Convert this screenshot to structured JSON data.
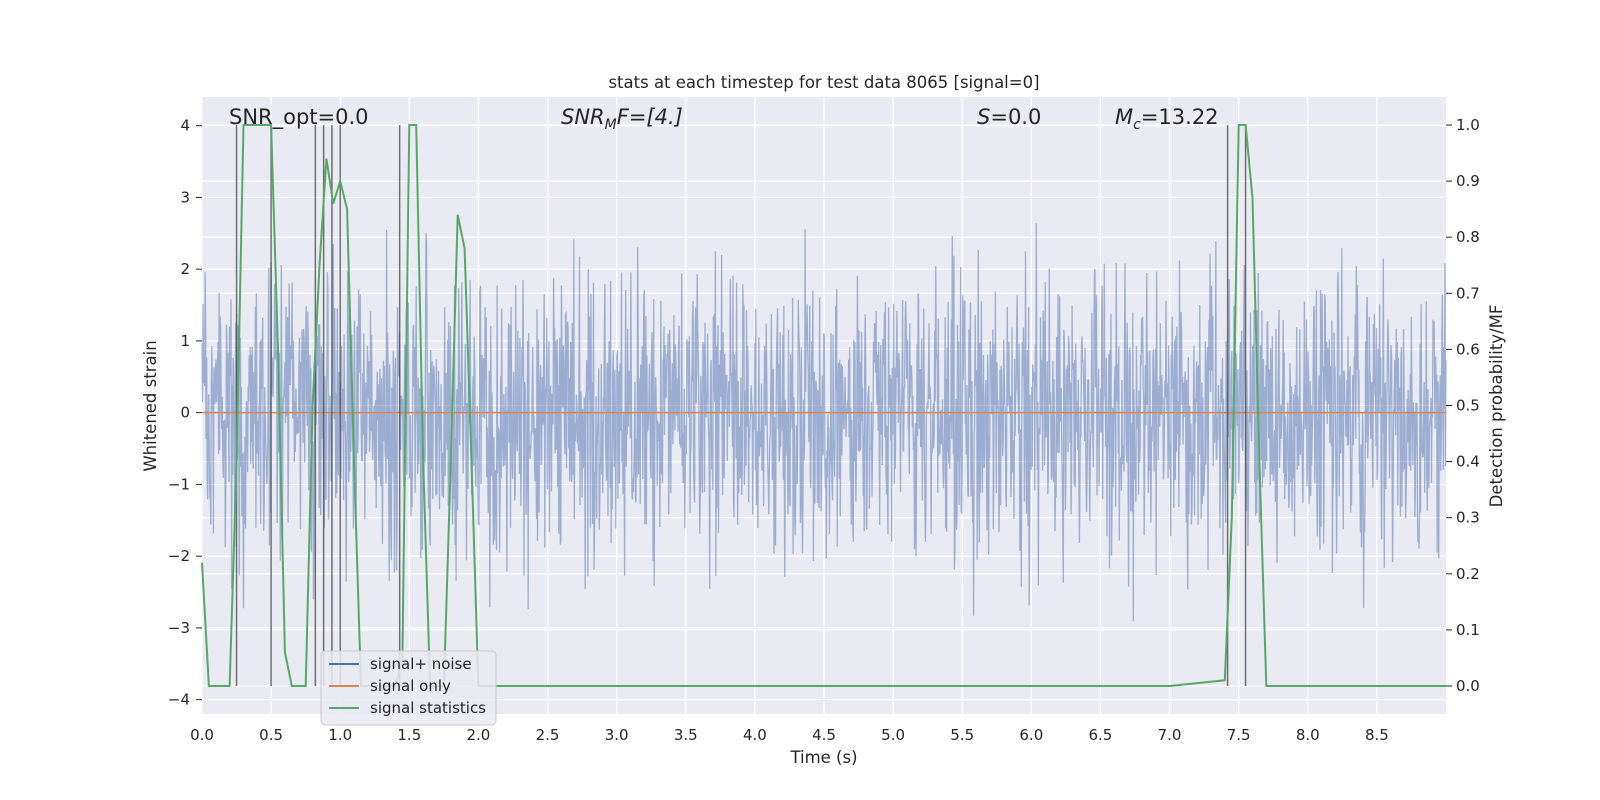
{
  "chart_data": {
    "type": "line",
    "title": "stats at each timestep for test data 8065 [signal=0]",
    "xlabel": "Time (s)",
    "ylabel": "Whitened strain",
    "ylabel_right": "Detection probability/MF",
    "xlim": [
      0.0,
      9.0
    ],
    "ylim": [
      -4.2,
      4.4
    ],
    "ylim_right": [
      -0.05,
      1.05
    ],
    "x_ticks": [
      "0.0",
      "0.5",
      "1.0",
      "1.5",
      "2.0",
      "2.5",
      "3.0",
      "3.5",
      "4.0",
      "4.5",
      "5.0",
      "5.5",
      "6.0",
      "6.5",
      "7.0",
      "7.5",
      "8.0",
      "8.5"
    ],
    "y_ticks": [
      "4",
      "3",
      "2",
      "1",
      "0",
      "−1",
      "−2",
      "−3",
      "−4"
    ],
    "y_ticks_right": [
      "1.0",
      "0.9",
      "0.8",
      "0.7",
      "0.6",
      "0.5",
      "0.4",
      "0.3",
      "0.2",
      "0.1",
      "0.0"
    ],
    "annotations": {
      "snr_opt": "SNR_opt=0.0",
      "snr_mf_main": "SNR",
      "snr_mf_sub": "M",
      "snr_mf_tail": "F=[4.]",
      "s_main": "S",
      "s_tail": "=0.0",
      "mc_main": "M",
      "mc_sub": "c",
      "mc_tail": "=13.22"
    },
    "legend": {
      "position": "lower-left",
      "entries": [
        {
          "label": "signal+ noise",
          "color": "#4c72b0"
        },
        {
          "label": "signal only",
          "color": "#dd8452"
        },
        {
          "label": "signal statistics",
          "color": "#55a868"
        }
      ]
    },
    "series": [
      {
        "name": "signal+ noise",
        "axis": "left",
        "kind": "noise",
        "approx_sigma": 1.0,
        "x_range": [
          0.0,
          9.0
        ],
        "color": "#4c72b0"
      },
      {
        "name": "signal only",
        "axis": "left",
        "kind": "constant",
        "value": 0.0,
        "x_range": [
          0.0,
          9.0
        ],
        "color": "#dd8452"
      },
      {
        "name": "signal statistics",
        "axis": "right",
        "color": "#55a868",
        "x": [
          0.0,
          0.05,
          0.1,
          0.15,
          0.2,
          0.25,
          0.3,
          0.35,
          0.4,
          0.45,
          0.5,
          0.55,
          0.6,
          0.65,
          0.7,
          0.75,
          0.8,
          0.85,
          0.9,
          0.95,
          1.0,
          1.05,
          1.1,
          1.15,
          1.2,
          1.25,
          1.3,
          1.35,
          1.4,
          1.45,
          1.5,
          1.55,
          1.6,
          1.65,
          1.7,
          1.75,
          1.8,
          1.85,
          1.9,
          1.95,
          2.0,
          2.05,
          2.1,
          2.3,
          2.5,
          2.9,
          3.0,
          7.0,
          7.4,
          7.45,
          7.5,
          7.55,
          7.6,
          7.65,
          7.7,
          7.75,
          8.0,
          9.0
        ],
        "y": [
          0.22,
          0.0,
          0.0,
          0.0,
          0.0,
          0.4,
          1.0,
          1.0,
          1.0,
          1.0,
          1.0,
          0.6,
          0.06,
          0.0,
          0.0,
          0.0,
          0.5,
          0.75,
          0.94,
          0.86,
          0.9,
          0.85,
          0.4,
          0.0,
          0.0,
          0.0,
          0.0,
          0.0,
          0.0,
          0.05,
          1.0,
          1.0,
          0.4,
          0.0,
          0.0,
          0.0,
          0.4,
          0.84,
          0.78,
          0.4,
          0.0,
          0.0,
          0.0,
          0.0,
          0.0,
          0.0,
          0.0,
          0.0,
          0.01,
          0.3,
          1.0,
          1.0,
          0.87,
          0.4,
          0.0,
          0.0,
          0.0,
          0.0
        ]
      }
    ],
    "vlines": [
      0.25,
      0.5,
      0.82,
      0.88,
      0.94,
      1.0,
      1.43,
      7.42,
      7.55
    ],
    "vlines_range": [
      0.0,
      1.0
    ]
  }
}
